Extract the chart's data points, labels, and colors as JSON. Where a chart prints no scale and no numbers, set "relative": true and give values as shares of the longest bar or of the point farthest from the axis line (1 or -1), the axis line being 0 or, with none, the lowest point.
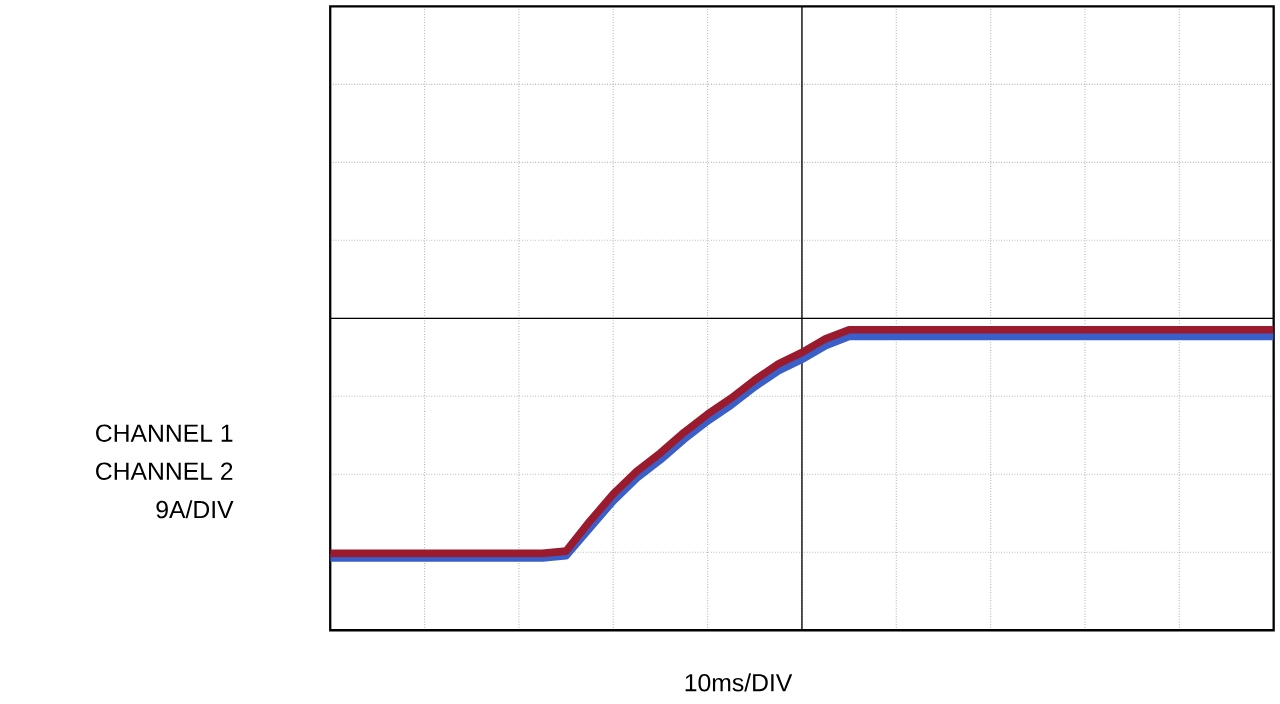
{
  "chart_data": {
    "type": "line",
    "relative": true,
    "xlabel": "10ms/DIV",
    "annotations": [
      "CHANNEL 1",
      "CHANNEL 2",
      "9A/DIV"
    ],
    "grid": true,
    "categories": [
      null,
      null,
      null,
      null,
      null,
      null,
      null,
      null,
      null,
      null,
      null,
      null,
      null,
      null,
      null,
      null,
      null,
      null,
      null,
      null,
      null,
      null,
      null,
      null,
      null,
      null,
      null,
      null,
      null,
      null,
      null,
      null,
      null,
      null,
      null,
      null,
      null,
      null,
      null,
      null,
      null
    ],
    "series": [
      {
        "color": "#9b1b2e",
        "values": [
          0.02,
          0.02,
          0.02,
          0.02,
          0.02,
          0.02,
          0.02,
          0.02,
          0.02,
          0.02,
          0.03,
          0.16,
          0.28,
          0.38,
          0.46,
          0.55,
          0.63,
          0.7,
          0.78,
          0.85,
          0.9,
          0.96,
          1,
          1,
          1,
          1,
          1,
          1,
          1,
          1,
          1,
          1,
          1,
          1,
          1,
          1,
          1,
          1,
          1,
          1,
          1
        ]
      },
      {
        "color": "#3a5fc8",
        "values": [
          0,
          0,
          0,
          0,
          0,
          0,
          0,
          0,
          0,
          0,
          0.01,
          0.13,
          0.25,
          0.35,
          0.43,
          0.52,
          0.6,
          0.67,
          0.75,
          0.82,
          0.87,
          0.93,
          0.97,
          0.97,
          0.97,
          0.97,
          0.97,
          0.97,
          0.97,
          0.97,
          0.97,
          0.97,
          0.97,
          0.97,
          0.97,
          0.97,
          0.97,
          0.97,
          0.97,
          0.97,
          0.97
        ]
      }
    ]
  }
}
